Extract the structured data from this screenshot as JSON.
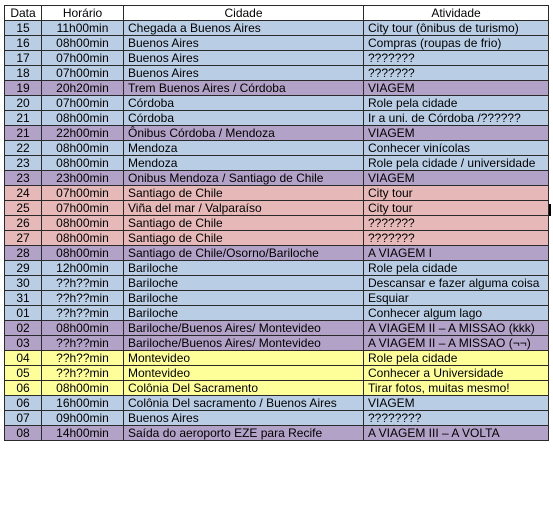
{
  "table": {
    "headers": {
      "data": "Data",
      "hora": "Horário",
      "cidade": "Cidade",
      "atividade": "Atividade"
    },
    "row_colors": {
      "blue": "#b9cde5",
      "purple": "#b3a2c7",
      "red": "#e6b9b8",
      "yellow": "#ffff99"
    },
    "rows": [
      {
        "color": "blue",
        "data": "15",
        "hora": "11h00min",
        "cidade": [
          {
            "t": "Chegada a Buenos Aires"
          }
        ],
        "atividade": [
          {
            "t": "City tour (ônibus de turismo)"
          }
        ]
      },
      {
        "color": "blue",
        "data": "16",
        "hora": "08h00min",
        "cidade": [
          {
            "t": "Buenos Aires"
          }
        ],
        "atividade": [
          {
            "t": "Compras (roupas de frio)"
          }
        ]
      },
      {
        "color": "blue",
        "data": "17",
        "hora": "07h00min",
        "cidade": [
          {
            "t": "Buenos Aires"
          }
        ],
        "atividade": [
          {
            "t": "???????",
            "s": "g"
          }
        ]
      },
      {
        "color": "blue",
        "data": "18",
        "hora": "07h00min",
        "cidade": [
          {
            "t": "Buenos Aires"
          }
        ],
        "atividade": [
          {
            "t": "???????",
            "s": "g"
          }
        ]
      },
      {
        "color": "purple",
        "data": "19",
        "hora": "20h20min",
        "cidade": [
          {
            "t": "Trem Buenos Aires / Córdoba"
          }
        ],
        "atividade": [
          {
            "t": "VIAGEM"
          }
        ]
      },
      {
        "color": "blue",
        "data": "20",
        "hora": "07h00min",
        "cidade": [
          {
            "t": "Córdoba"
          }
        ],
        "atividade": [
          {
            "t": "Role pela cidade"
          }
        ]
      },
      {
        "color": "blue",
        "data": "21",
        "hora": "08h00min",
        "cidade": [
          {
            "t": "Córdoba"
          }
        ],
        "atividade": [
          {
            "t": "Ir a uni. de Córdoba /??????"
          }
        ]
      },
      {
        "color": "purple",
        "data": "21",
        "hora": "22h00min",
        "cidade": [
          {
            "t": "Ônibus Córdoba / "
          },
          {
            "t": "Mendoza",
            "s": "r"
          }
        ],
        "atividade": [
          {
            "t": "VIAGEM"
          }
        ]
      },
      {
        "color": "blue",
        "data": "22",
        "hora": "08h00min",
        "cidade": [
          {
            "t": "Mendoza",
            "s": "r"
          }
        ],
        "atividade": [
          {
            "t": "Conhecer vinícolas"
          }
        ]
      },
      {
        "color": "blue",
        "data": "23",
        "hora": "08h00min",
        "cidade": [
          {
            "t": "Mendoza",
            "s": "r"
          }
        ],
        "atividade": [
          {
            "t": "Role pela cidade / universidade"
          }
        ]
      },
      {
        "color": "purple",
        "data": "23",
        "hora": "23h00min",
        "cidade": [
          {
            "t": "Onibus "
          },
          {
            "t": "Mendoza",
            "s": "r"
          },
          {
            "t": " / Santiago de Chile"
          }
        ],
        "atividade": [
          {
            "t": "VIAGEM"
          }
        ]
      },
      {
        "color": "red",
        "data": "24",
        "hora": "07h00min",
        "cidade": [
          {
            "t": "Santiago de Chile"
          }
        ],
        "atividade": [
          {
            "t": "City tour"
          }
        ]
      },
      {
        "color": "red",
        "data": "25",
        "hora": "07h00min",
        "cidade": [
          {
            "t": "Viña del mar",
            "s": "r"
          },
          {
            "t": " / "
          },
          {
            "t": "Valparaíso",
            "s": "r"
          }
        ],
        "atividade": [
          {
            "t": "City tour"
          }
        ]
      },
      {
        "color": "red",
        "data": "26",
        "hora": "08h00min",
        "cidade": [
          {
            "t": "Santiago de Chile"
          }
        ],
        "atividade": [
          {
            "t": "???????",
            "s": "g"
          }
        ]
      },
      {
        "color": "red",
        "data": "27",
        "hora": "08h00min",
        "cidade": [
          {
            "t": "Santiago de Chile"
          }
        ],
        "atividade": [
          {
            "t": "???????",
            "s": "g"
          }
        ]
      },
      {
        "color": "purple",
        "data": "28",
        "hora": "08h00min",
        "cidade": [
          {
            "t": "Santiago de Chile/"
          },
          {
            "t": "Osorno/Bariloche",
            "s": "r"
          }
        ],
        "atividade": [
          {
            "t": "A VIAGEM I"
          }
        ]
      },
      {
        "color": "blue",
        "data": "29",
        "hora": "12h00min",
        "cidade": [
          {
            "t": "Bariloche",
            "s": "r"
          }
        ],
        "atividade": [
          {
            "t": "Role pela cidade"
          }
        ]
      },
      {
        "color": "blue",
        "data": "30",
        "hora": [
          {
            "t": "??h??min",
            "s": "g"
          }
        ],
        "cidade": [
          {
            "t": "Bariloche",
            "s": "r"
          }
        ],
        "atividade": [
          {
            "t": "Descansar e fazer alguma coisa"
          }
        ]
      },
      {
        "color": "blue",
        "data": "31",
        "hora": [
          {
            "t": "??h??min",
            "s": "g"
          }
        ],
        "cidade": [
          {
            "t": "Bariloche",
            "s": "r"
          }
        ],
        "atividade": [
          {
            "t": "Esquiar"
          }
        ]
      },
      {
        "color": "blue",
        "data": "01",
        "hora": [
          {
            "t": "??h??min",
            "s": "g"
          }
        ],
        "cidade": [
          {
            "t": "Bariloche",
            "s": "r"
          }
        ],
        "atividade": [
          {
            "t": "Conhecer algum lago"
          }
        ]
      },
      {
        "color": "purple",
        "data": "02",
        "hora": "08h00min",
        "cidade": [
          {
            "t": "Bariloche",
            "s": "r"
          },
          {
            "t": "/Buenos Aires/ "
          },
          {
            "t": "Montevideo",
            "s": "r"
          }
        ],
        "atividade": [
          {
            "t": "A VIAGEM II – A MISSAO"
          },
          {
            "t": " (kkk)"
          }
        ]
      },
      {
        "color": "purple",
        "data": "03",
        "hora": [
          {
            "t": "??h??min",
            "s": "g"
          }
        ],
        "cidade": [
          {
            "t": "Bariloche",
            "s": "r"
          },
          {
            "t": "/Buenos Aires/ "
          },
          {
            "t": "Montevideo",
            "s": "r"
          }
        ],
        "atividade": [
          {
            "t": "A VIAGEM II – A MISSAO"
          },
          {
            "t": " (¬¬)"
          }
        ]
      },
      {
        "color": "yellow",
        "data": "04",
        "hora": [
          {
            "t": "??h??min",
            "s": "g"
          }
        ],
        "cidade": [
          {
            "t": "Montevideo",
            "s": "r"
          }
        ],
        "atividade": [
          {
            "t": "Role pela cidade"
          }
        ]
      },
      {
        "color": "yellow",
        "data": "05",
        "hora": [
          {
            "t": "??h??min",
            "s": "g"
          }
        ],
        "cidade": [
          {
            "t": "Montevideo",
            "s": "r"
          }
        ],
        "atividade": [
          {
            "t": "Conhecer a Universidade"
          }
        ]
      },
      {
        "color": "yellow",
        "data": "06",
        "hora": "08h00min",
        "cidade": [
          {
            "t": "Colônia Del Sacramento"
          }
        ],
        "atividade": [
          {
            "t": "Tirar fotos, muitas mesmo!"
          }
        ]
      },
      {
        "color": "blue",
        "data": "06",
        "hora": "16h00min",
        "cidade": [
          {
            "t": "Colônia Del sacramento / Buenos Aires"
          }
        ],
        "atividade": [
          {
            "t": "VIAGEM"
          }
        ]
      },
      {
        "color": "blue",
        "data": "07",
        "hora": "09h00min",
        "cidade": [
          {
            "t": "Buenos Aires"
          }
        ],
        "atividade": [
          {
            "t": "????????",
            "s": "g"
          }
        ]
      },
      {
        "color": "purple",
        "data": "08",
        "hora": "14h00min",
        "cidade": [
          {
            "t": "Saída do aeroporto EZE para Recife"
          }
        ],
        "atividade": [
          {
            "t": "A VIAGEM III – A VOLTA"
          }
        ]
      }
    ]
  }
}
